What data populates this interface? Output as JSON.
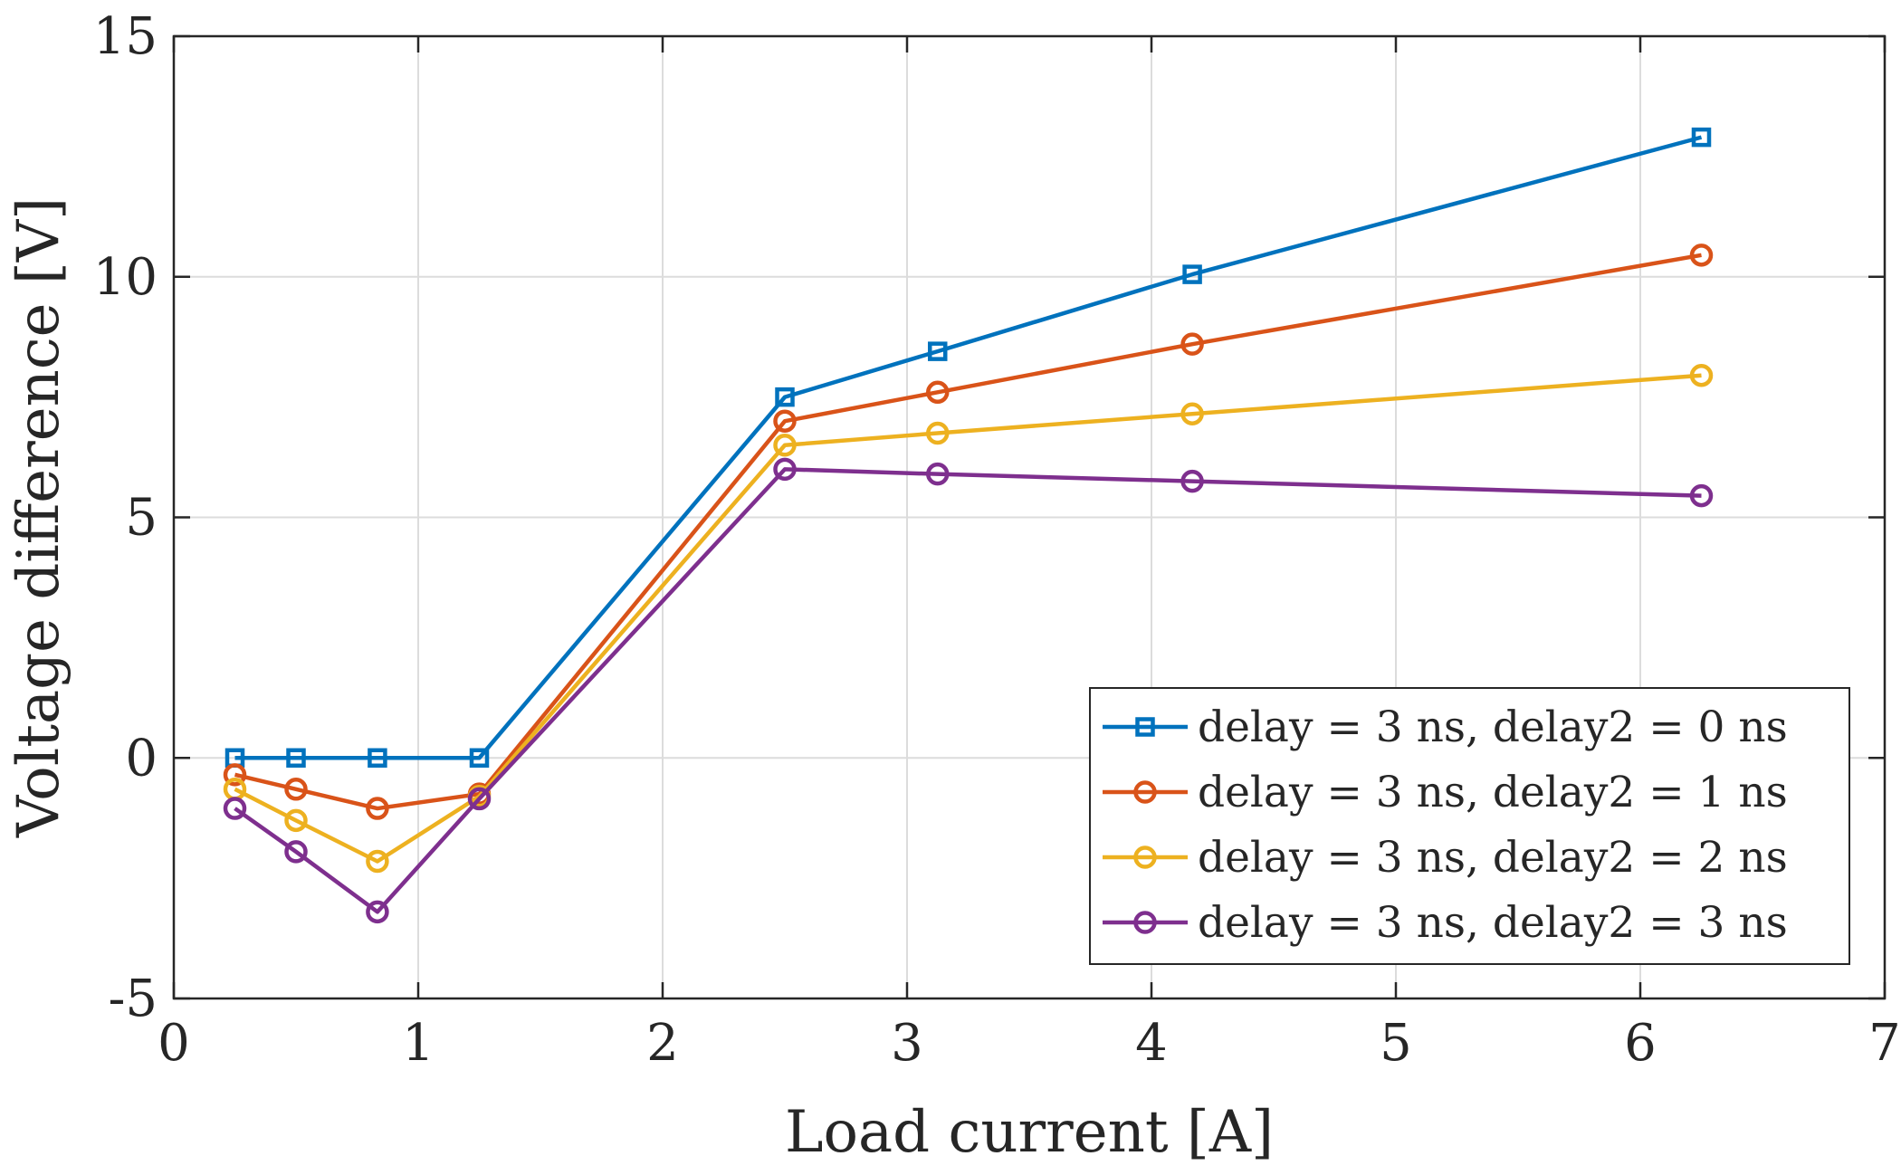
{
  "chart_data": {
    "type": "line",
    "xlabel": "Load current [A]",
    "ylabel": "Voltage difference [V]",
    "xlim": [
      0,
      7
    ],
    "ylim": [
      -5,
      15
    ],
    "xticks": [
      "0",
      "1",
      "2",
      "3",
      "4",
      "5",
      "6",
      "7"
    ],
    "yticks": [
      "-5",
      "0",
      "5",
      "10",
      "15"
    ],
    "grid": true,
    "legend_position": "lower-right",
    "x": [
      0.25,
      0.5,
      0.833,
      1.25,
      2.5,
      3.125,
      4.167,
      6.25
    ],
    "series": [
      {
        "name": "delay = 3 ns, delay2 = 0 ns",
        "color": "#0072BD",
        "marker": "square",
        "values": [
          0.0,
          0.0,
          0.0,
          0.0,
          7.5,
          8.45,
          10.05,
          12.9
        ]
      },
      {
        "name": "delay = 3 ns, delay2 = 1 ns",
        "color": "#D95319",
        "marker": "circle",
        "values": [
          -0.35,
          -0.65,
          -1.05,
          -0.75,
          7.0,
          7.6,
          8.6,
          10.45
        ]
      },
      {
        "name": "delay = 3 ns, delay2 = 2 ns",
        "color": "#EDB120",
        "marker": "circle",
        "values": [
          -0.65,
          -1.3,
          -2.15,
          -0.8,
          6.5,
          6.75,
          7.15,
          7.95
        ]
      },
      {
        "name": "delay = 3 ns, delay2 = 3 ns",
        "color": "#7E2F8E",
        "marker": "circle",
        "values": [
          -1.05,
          -1.95,
          -3.2,
          -0.85,
          6.0,
          5.9,
          5.75,
          5.45
        ]
      }
    ]
  }
}
